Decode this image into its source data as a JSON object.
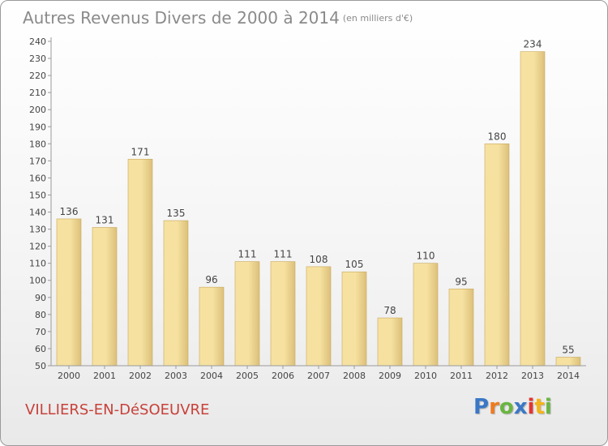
{
  "page": {
    "title": "Autres Revenus Divers de 2000 à 2014",
    "unit": "(en milliers d'€)",
    "commune": "VILLIERS-EN-DéSOEUVRE",
    "logo": {
      "text": "Proxiti",
      "letter_colors": [
        "#3a78c6",
        "#ef7b1f",
        "#6ab542",
        "#3a78c6",
        "#e3342f",
        "#f4b41a",
        "#6ab542"
      ]
    }
  },
  "chart_data": {
    "type": "bar",
    "title": "Autres Revenus Divers de 2000 à 2014",
    "subtitle": "(en milliers d'€)",
    "xlabel": "",
    "ylabel": "",
    "categories": [
      "2000",
      "2001",
      "2002",
      "2003",
      "2004",
      "2005",
      "2006",
      "2007",
      "2008",
      "2009",
      "2010",
      "2011",
      "2012",
      "2013",
      "2014"
    ],
    "values": [
      136,
      131,
      171,
      135,
      96,
      111,
      111,
      108,
      105,
      78,
      110,
      95,
      180,
      234,
      55
    ],
    "ylim": [
      50,
      240
    ],
    "ytick_step": 10,
    "grid": false,
    "legend": "none",
    "data_labels": true,
    "colors": {
      "bar_light": "#f6e1a0",
      "bar_dark": "#dcc07a",
      "bar_edge": "#c9a85c",
      "axis": "#9a9a9a",
      "label_text": "#444444"
    }
  }
}
